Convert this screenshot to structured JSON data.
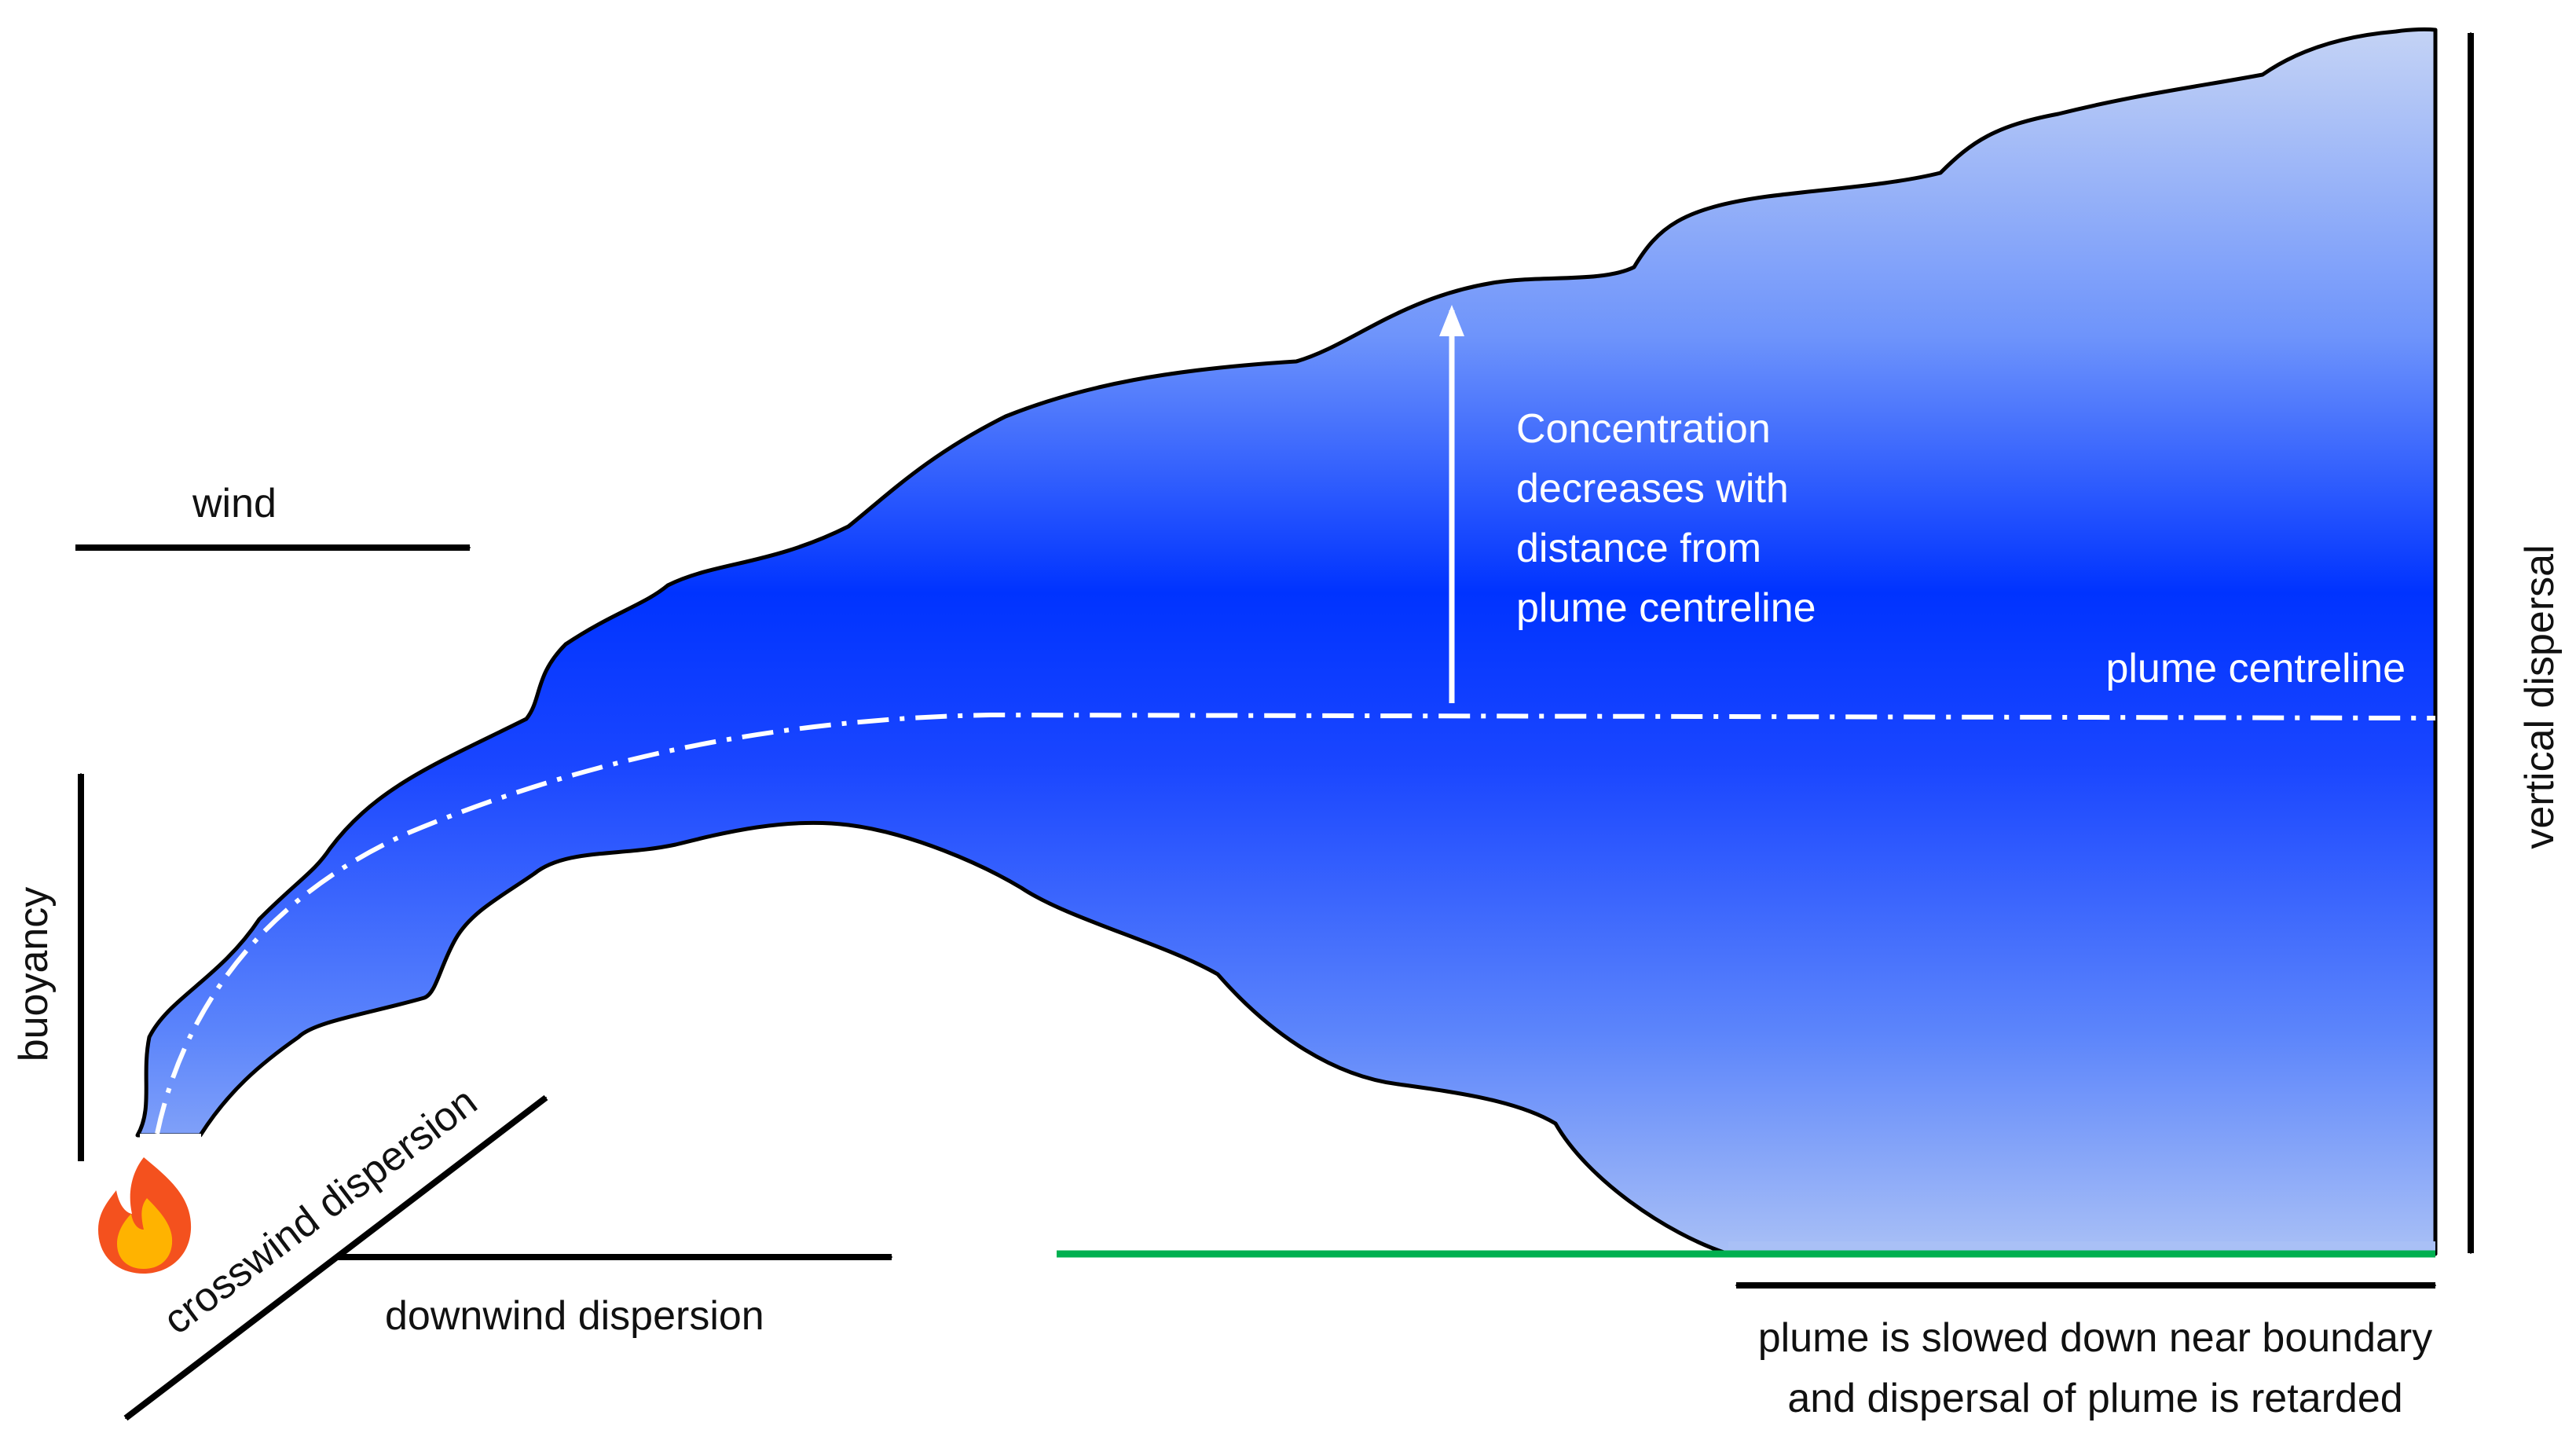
{
  "labels": {
    "wind": "wind",
    "buoyancy": "buoyancy",
    "crosswind": "crosswind  dispersion",
    "downwind": "downwind dispersion",
    "vertical": "vertical dispersal",
    "centreline": "plume centreline",
    "concentration": [
      "Concentration",
      "decreases with",
      "distance from",
      "plume centreline"
    ],
    "boundary": [
      "plume is slowed down near boundary",
      "and dispersal of plume is retarded"
    ]
  },
  "icons": {
    "source": "fire-icon"
  },
  "colors": {
    "plume_core": "#0033ff",
    "plume_edge": "#b3c8f5",
    "ground": "#00b050",
    "arrows": "#000000",
    "centreline": "#ffffff",
    "flame_outer": "#f4511e",
    "flame_inner": "#ffb300"
  }
}
